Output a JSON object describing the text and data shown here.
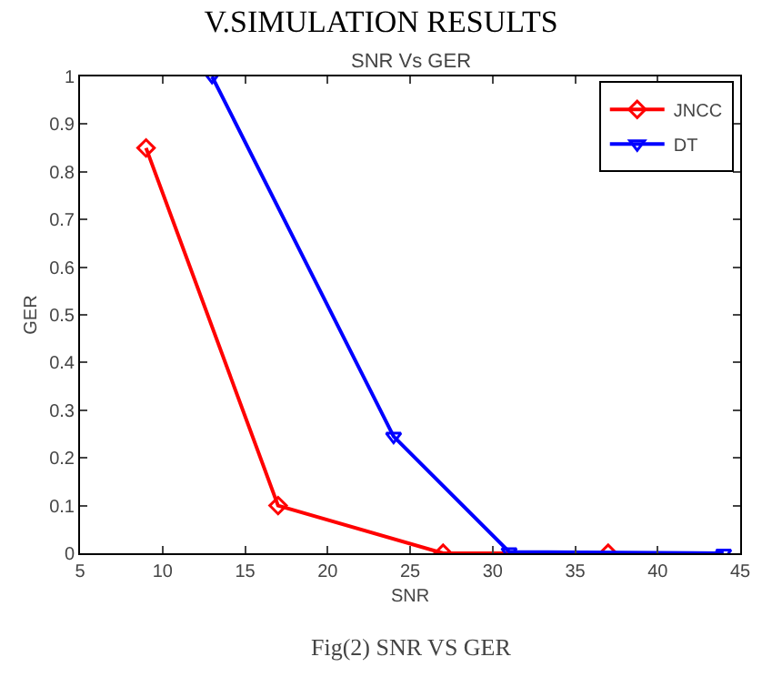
{
  "chart_data": {
    "type": "line",
    "title": "V.SIMULATION RESULTS",
    "subtitle": "SNR Vs GER",
    "xlabel": "SNR",
    "ylabel": "GER",
    "xlim": [
      5,
      45
    ],
    "xticks": [
      5,
      10,
      15,
      20,
      25,
      30,
      35,
      40,
      45
    ],
    "ylim": [
      0,
      1
    ],
    "yticks": [
      0,
      0.1,
      0.2,
      0.3,
      0.4,
      0.5,
      0.6,
      0.7,
      0.8,
      0.9,
      1
    ],
    "grid": false,
    "legend": "top right",
    "series": [
      {
        "name": "JNCC",
        "color": "#ff0000",
        "marker": "diamond",
        "x": [
          9,
          17,
          27,
          37
        ],
        "values": [
          0.85,
          0.1,
          0,
          0
        ]
      },
      {
        "name": "DT",
        "color": "#0000ff",
        "marker": "triangle-down",
        "x": [
          13,
          24,
          31,
          44
        ],
        "values": [
          1,
          0.245,
          0.003,
          0
        ]
      }
    ],
    "annotations": [
      "Fig(2) SNR VS GER"
    ]
  }
}
